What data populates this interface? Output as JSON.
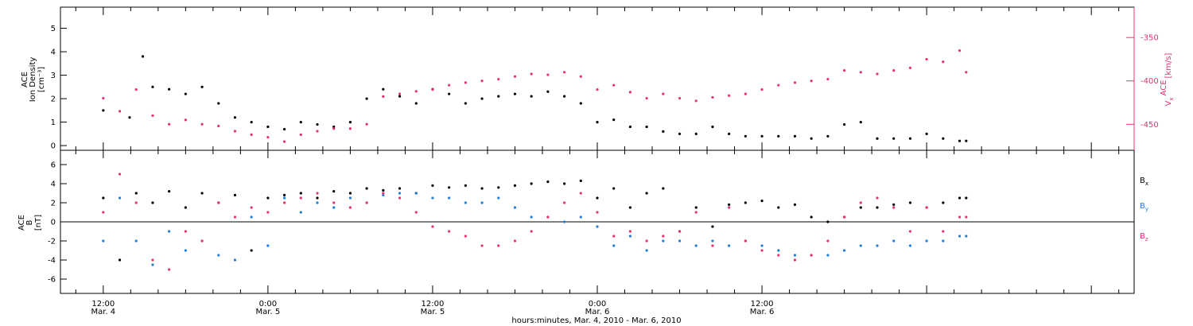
{
  "chart_data": [
    {
      "type": "scatter",
      "panel": "density",
      "ylabel_lines": [
        "ACE",
        "Ion Density"
      ],
      "yunit": "[cm⁻³]",
      "ylim": [
        -0.2,
        5.9
      ],
      "yticks": [
        0,
        1,
        2,
        3,
        4,
        5
      ],
      "y2label": "Vₓ ACE",
      "y2label_main": "V",
      "y2label_sub": "x",
      "y2label_ace": "ACE",
      "y2unit": "[km/s]",
      "y2lim": [
        -480,
        -315
      ],
      "y2ticks": [
        -350,
        -400,
        -450
      ],
      "series": [
        {
          "name": "Ion Density",
          "axis": "left",
          "color": "#000000",
          "x": [
            0.0,
            0.08,
            0.12,
            0.15,
            0.2,
            0.25,
            0.3,
            0.35,
            0.4,
            0.45,
            0.5,
            0.55,
            0.6,
            0.65,
            0.7,
            0.75,
            0.8,
            0.85,
            0.9,
            0.95,
            1.0,
            1.05,
            1.1,
            1.15,
            1.2,
            1.25,
            1.3,
            1.35,
            1.4,
            1.45,
            1.5,
            1.55,
            1.6,
            1.65,
            1.7,
            1.75,
            1.8,
            1.85,
            1.9,
            1.95,
            2.0,
            2.05,
            2.1,
            2.15,
            2.2,
            2.25,
            2.3,
            2.35,
            2.4,
            2.45,
            2.5,
            2.55,
            2.6,
            2.62
          ],
          "values": [
            1.5,
            1.2,
            3.8,
            2.5,
            2.4,
            2.2,
            2.5,
            1.8,
            1.2,
            1.0,
            0.8,
            0.7,
            1.0,
            0.9,
            0.8,
            1.0,
            2.0,
            2.4,
            2.1,
            1.8,
            2.4,
            2.2,
            1.8,
            2.0,
            2.1,
            2.2,
            2.1,
            2.3,
            2.1,
            1.8,
            1.0,
            1.1,
            0.8,
            0.8,
            0.6,
            0.5,
            0.5,
            0.8,
            0.5,
            0.4,
            0.4,
            0.4,
            0.4,
            0.3,
            0.4,
            0.9,
            1.0,
            0.3,
            0.3,
            0.3,
            0.5,
            0.3,
            0.2,
            0.2
          ]
        },
        {
          "name": "Vx",
          "axis": "right",
          "color": "#e8336a",
          "x": [
            0.0,
            0.05,
            0.1,
            0.15,
            0.2,
            0.25,
            0.3,
            0.35,
            0.4,
            0.45,
            0.5,
            0.55,
            0.6,
            0.65,
            0.7,
            0.75,
            0.8,
            0.85,
            0.9,
            0.95,
            1.0,
            1.05,
            1.1,
            1.15,
            1.2,
            1.25,
            1.3,
            1.35,
            1.4,
            1.45,
            1.5,
            1.55,
            1.6,
            1.65,
            1.7,
            1.75,
            1.8,
            1.85,
            1.9,
            1.95,
            2.0,
            2.05,
            2.1,
            2.15,
            2.2,
            2.25,
            2.3,
            2.35,
            2.4,
            2.45,
            2.5,
            2.55,
            2.6,
            2.62
          ],
          "values": [
            -420,
            -435,
            -410,
            -440,
            -450,
            -445,
            -450,
            -452,
            -458,
            -462,
            -465,
            -470,
            -462,
            -458,
            -455,
            -455,
            -450,
            -418,
            -415,
            -412,
            -410,
            -405,
            -402,
            -400,
            -398,
            -395,
            -392,
            -393,
            -390,
            -395,
            -410,
            -405,
            -413,
            -420,
            -415,
            -420,
            -423,
            -419,
            -417,
            -415,
            -410,
            -405,
            -402,
            -400,
            -398,
            -388,
            -390,
            -392,
            -388,
            -385,
            -375,
            -378,
            -365,
            -390
          ]
        }
      ]
    },
    {
      "type": "scatter",
      "panel": "magnetic-field",
      "ylabel_lines": [
        "ACE",
        "B"
      ],
      "yunit": "[nT]",
      "ylim": [
        -7.5,
        7.5
      ],
      "yticks": [
        -6,
        -4,
        -2,
        0,
        2,
        4,
        6
      ],
      "zero_line": true,
      "series": [
        {
          "name": "Bx",
          "label_main": "B",
          "label_sub": "x",
          "color": "#000000",
          "x": [
            0.0,
            0.05,
            0.1,
            0.15,
            0.2,
            0.25,
            0.3,
            0.35,
            0.4,
            0.45,
            0.5,
            0.55,
            0.6,
            0.65,
            0.7,
            0.75,
            0.8,
            0.85,
            0.9,
            0.95,
            1.0,
            1.05,
            1.1,
            1.15,
            1.2,
            1.25,
            1.3,
            1.35,
            1.4,
            1.45,
            1.5,
            1.55,
            1.6,
            1.65,
            1.7,
            1.75,
            1.8,
            1.85,
            1.9,
            1.95,
            2.0,
            2.05,
            2.1,
            2.15,
            2.2,
            2.25,
            2.3,
            2.35,
            2.4,
            2.45,
            2.5,
            2.55,
            2.6,
            2.62
          ],
          "values": [
            2.5,
            -4.0,
            3.0,
            2.0,
            3.2,
            1.5,
            3.0,
            2.0,
            2.8,
            -3.0,
            2.5,
            2.8,
            3.0,
            2.5,
            3.2,
            3.0,
            3.5,
            3.3,
            3.5,
            3.0,
            3.8,
            3.6,
            3.8,
            3.5,
            3.6,
            3.8,
            4.0,
            4.2,
            4.0,
            4.3,
            2.5,
            3.5,
            1.5,
            3.0,
            3.5,
            -1.0,
            1.5,
            -0.5,
            1.8,
            2.0,
            2.2,
            1.5,
            1.8,
            0.5,
            0.0,
            0.5,
            1.5,
            1.5,
            1.8,
            2.0,
            1.5,
            2.0,
            2.5,
            2.5
          ]
        },
        {
          "name": "By",
          "label_main": "B",
          "label_sub": "y",
          "color": "#1f7fd6",
          "x": [
            0.0,
            0.05,
            0.1,
            0.15,
            0.2,
            0.25,
            0.3,
            0.35,
            0.4,
            0.45,
            0.5,
            0.55,
            0.6,
            0.65,
            0.7,
            0.75,
            0.8,
            0.85,
            0.9,
            0.95,
            1.0,
            1.05,
            1.1,
            1.15,
            1.2,
            1.25,
            1.3,
            1.35,
            1.4,
            1.45,
            1.5,
            1.55,
            1.6,
            1.65,
            1.7,
            1.75,
            1.8,
            1.85,
            1.9,
            1.95,
            2.0,
            2.05,
            2.1,
            2.15,
            2.2,
            2.25,
            2.3,
            2.35,
            2.4,
            2.45,
            2.5,
            2.55,
            2.6,
            2.62
          ],
          "values": [
            -2.0,
            2.5,
            -2.0,
            -4.5,
            -1.0,
            -3.0,
            -2.0,
            -3.5,
            -4.0,
            0.5,
            -2.5,
            2.5,
            1.0,
            2.0,
            1.5,
            2.5,
            2.0,
            2.8,
            3.0,
            3.0,
            2.5,
            2.5,
            2.0,
            2.0,
            2.5,
            1.5,
            0.5,
            0.5,
            0.0,
            0.5,
            -0.5,
            -2.5,
            -1.5,
            -3.0,
            -2.0,
            -2.0,
            -2.5,
            -2.0,
            -2.5,
            -2.0,
            -2.5,
            -3.0,
            -3.5,
            -3.5,
            -3.5,
            -3.0,
            -2.5,
            -2.5,
            -2.0,
            -2.5,
            -2.0,
            -2.0,
            -1.5,
            -1.5
          ]
        },
        {
          "name": "Bz",
          "label_main": "B",
          "label_sub": "z",
          "color": "#e8336a",
          "x": [
            0.0,
            0.05,
            0.1,
            0.15,
            0.2,
            0.25,
            0.3,
            0.35,
            0.4,
            0.45,
            0.5,
            0.55,
            0.6,
            0.65,
            0.7,
            0.75,
            0.8,
            0.85,
            0.9,
            0.95,
            1.0,
            1.05,
            1.1,
            1.15,
            1.2,
            1.25,
            1.3,
            1.35,
            1.4,
            1.45,
            1.5,
            1.55,
            1.6,
            1.65,
            1.7,
            1.75,
            1.8,
            1.85,
            1.9,
            1.95,
            2.0,
            2.05,
            2.1,
            2.15,
            2.2,
            2.25,
            2.3,
            2.35,
            2.4,
            2.45,
            2.5,
            2.55,
            2.6,
            2.62
          ],
          "values": [
            1.0,
            5.0,
            2.0,
            -4.0,
            -5.0,
            -1.0,
            -2.0,
            2.0,
            0.5,
            1.5,
            1.0,
            2.0,
            2.5,
            3.0,
            2.0,
            1.5,
            2.0,
            3.0,
            2.5,
            1.0,
            -0.5,
            -1.0,
            -1.5,
            -2.5,
            -2.5,
            -2.0,
            -1.0,
            0.5,
            2.0,
            3.0,
            1.0,
            -1.5,
            -1.0,
            -2.0,
            -1.5,
            -1.0,
            1.0,
            -2.5,
            1.5,
            -2.0,
            -3.0,
            -3.5,
            -4.0,
            -3.5,
            -2.0,
            0.5,
            2.0,
            2.5,
            1.5,
            -1.0,
            1.5,
            -1.0,
            0.5,
            0.5
          ]
        }
      ]
    }
  ],
  "xaxis": {
    "xlim": [
      -0.13,
      3.13
    ],
    "major_ticks": [
      {
        "x": 0.0,
        "time": "12:00",
        "date": "Mar. 4"
      },
      {
        "x": 0.5,
        "time": "0:00",
        "date": "Mar. 5"
      },
      {
        "x": 1.0,
        "time": "12:00",
        "date": "Mar. 5"
      },
      {
        "x": 1.5,
        "time": "0:00",
        "date": "Mar. 6"
      },
      {
        "x": 2.0,
        "time": "12:00",
        "date": "Mar. 6"
      }
    ],
    "xlabel": "hours:minutes, Mar.  4, 2010 - Mar.  6, 2010"
  }
}
